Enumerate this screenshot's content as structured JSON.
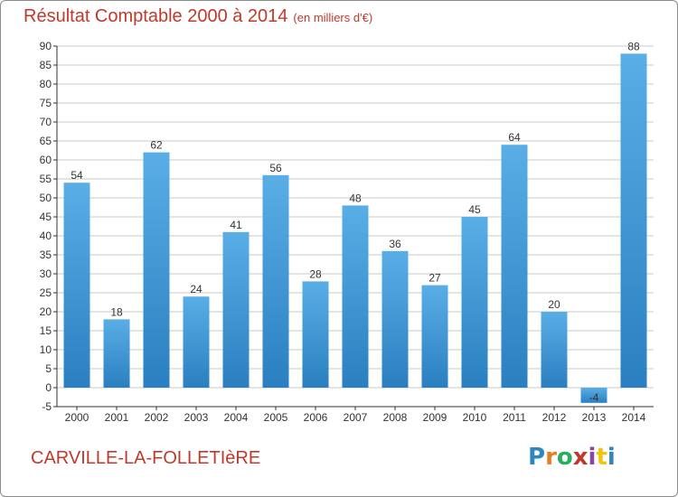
{
  "header": {
    "title": "Résultat Comptable 2000 à 2014",
    "subtitle": "(en milliers d'€)"
  },
  "footer": {
    "commune": "CARVILLE-LA-FOLLETIèRE",
    "logo_letters": [
      "P",
      "r",
      "o",
      "x",
      "i",
      "t",
      "i"
    ],
    "logo_colors": [
      "#2e86c1",
      "#e67e22",
      "#27ae60",
      "#c0392b",
      "#8e44ad",
      "#f1c40f",
      "#2e86c1"
    ]
  },
  "colors": {
    "bar": "#3e9ad9",
    "grid": "#c8c8c8",
    "axis": "#333333",
    "text_accent": "#c0392b"
  },
  "chart_data": {
    "type": "bar",
    "categories": [
      "2000",
      "2001",
      "2002",
      "2003",
      "2004",
      "2005",
      "2006",
      "2007",
      "2008",
      "2009",
      "2010",
      "2011",
      "2012",
      "2013",
      "2014"
    ],
    "values": [
      54,
      18,
      62,
      24,
      41,
      56,
      28,
      48,
      36,
      27,
      45,
      64,
      20,
      -4,
      88
    ],
    "data_labels": [
      "54",
      "18",
      "62",
      "24",
      "41",
      "56",
      "28",
      "48",
      "36",
      "27",
      "45",
      "64",
      "20",
      "-4",
      "88"
    ],
    "title": "Résultat Comptable 2000 à 2014",
    "ylim": [
      -5,
      90
    ],
    "yticks": [
      -5,
      0,
      5,
      10,
      15,
      20,
      25,
      30,
      35,
      40,
      45,
      50,
      55,
      60,
      65,
      70,
      75,
      80,
      85,
      90
    ],
    "grid": true
  }
}
